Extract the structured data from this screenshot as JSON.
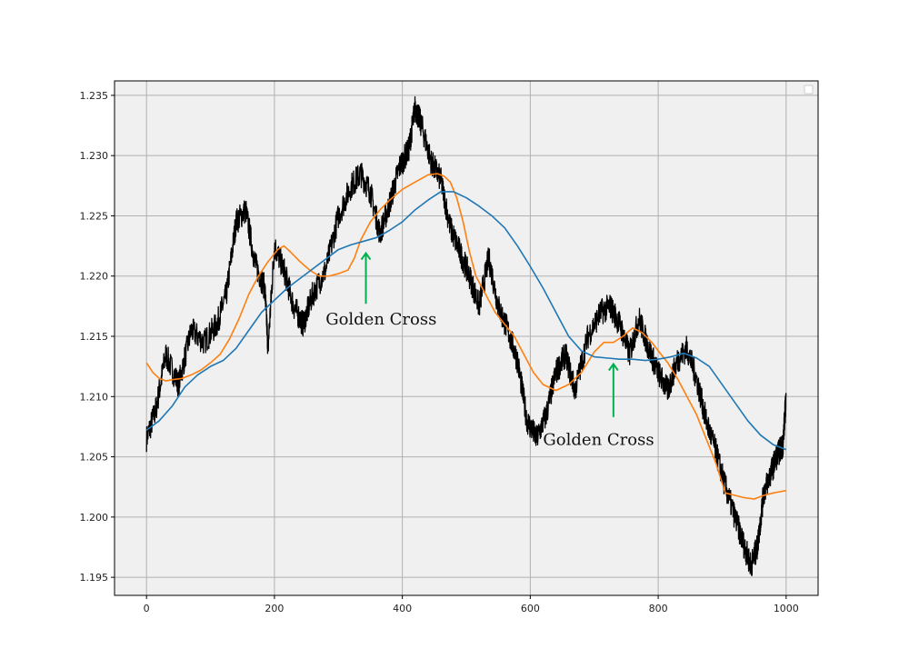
{
  "chart_data": {
    "type": "line",
    "title": "",
    "xlabel": "",
    "ylabel": "",
    "xlim": [
      -50,
      1050
    ],
    "ylim": [
      1.1935,
      1.2362
    ],
    "grid": true,
    "background": "#f0f0f0",
    "legend": {
      "placement": "upper right",
      "entries": []
    },
    "x_ticks": [
      0,
      200,
      400,
      600,
      800,
      1000
    ],
    "x_tick_labels": [
      "0",
      "200",
      "400",
      "600",
      "800",
      "1000"
    ],
    "y_ticks": [
      1.195,
      1.2,
      1.205,
      1.21,
      1.215,
      1.22,
      1.225,
      1.23,
      1.235
    ],
    "y_tick_labels": [
      "1.195",
      "1.200",
      "1.205",
      "1.210",
      "1.215",
      "1.220",
      "1.225",
      "1.230",
      "1.235"
    ],
    "series": [
      {
        "color": "#000000",
        "x": [
          0,
          15,
          30,
          50,
          70,
          90,
          110,
          125,
          140,
          155,
          170,
          185,
          190,
          200,
          215,
          230,
          245,
          260,
          280,
          300,
          320,
          335,
          350,
          365,
          380,
          395,
          410,
          420,
          430,
          445,
          460,
          475,
          490,
          505,
          520,
          535,
          550,
          565,
          580,
          595,
          610,
          625,
          640,
          655,
          670,
          690,
          710,
          725,
          740,
          755,
          770,
          785,
          800,
          815,
          830,
          845,
          860,
          875,
          890,
          905,
          920,
          935,
          945,
          955,
          965,
          975,
          985,
          995,
          1000
        ],
        "y": [
          1.2065,
          1.209,
          1.2135,
          1.211,
          1.2155,
          1.2145,
          1.216,
          1.2185,
          1.2245,
          1.2255,
          1.221,
          1.219,
          1.214,
          1.2225,
          1.2205,
          1.2175,
          1.216,
          1.2185,
          1.2205,
          1.225,
          1.2275,
          1.2285,
          1.227,
          1.2235,
          1.226,
          1.229,
          1.2305,
          1.234,
          1.2325,
          1.2295,
          1.228,
          1.224,
          1.222,
          1.22,
          1.2175,
          1.2215,
          1.2175,
          1.2155,
          1.213,
          1.208,
          1.2065,
          1.2085,
          1.212,
          1.2135,
          1.2105,
          1.215,
          1.217,
          1.2175,
          1.216,
          1.2135,
          1.2165,
          1.214,
          1.212,
          1.2105,
          1.213,
          1.214,
          1.2115,
          1.208,
          1.2055,
          1.2025,
          1.2,
          1.1975,
          1.196,
          1.1975,
          1.202,
          1.2035,
          1.205,
          1.206,
          1.21
        ]
      },
      {
        "color": "#ff7f0e",
        "x": [
          0,
          10,
          20,
          30,
          40,
          55,
          70,
          85,
          100,
          115,
          130,
          145,
          160,
          175,
          190,
          205,
          215,
          225,
          240,
          255,
          270,
          285,
          300,
          315,
          325,
          335,
          350,
          365,
          380,
          400,
          420,
          440,
          455,
          465,
          475,
          485,
          495,
          505,
          515,
          530,
          545,
          560,
          575,
          590,
          605,
          620,
          640,
          660,
          680,
          700,
          715,
          730,
          745,
          760,
          775,
          790,
          800,
          815,
          830,
          845,
          860,
          875,
          890,
          905,
          920,
          935,
          950,
          965,
          980,
          990,
          1000
        ],
        "y": [
          1.2128,
          1.212,
          1.2115,
          1.2113,
          1.2114,
          1.2115,
          1.2118,
          1.2122,
          1.2128,
          1.2135,
          1.2148,
          1.2165,
          1.2185,
          1.22,
          1.2212,
          1.2222,
          1.2225,
          1.222,
          1.2212,
          1.2205,
          1.22,
          1.22,
          1.2202,
          1.2205,
          1.2215,
          1.223,
          1.2245,
          1.2255,
          1.2263,
          1.2272,
          1.2278,
          1.2284,
          1.2285,
          1.2283,
          1.2278,
          1.2265,
          1.2245,
          1.222,
          1.22,
          1.2185,
          1.217,
          1.216,
          1.215,
          1.2135,
          1.212,
          1.211,
          1.2105,
          1.211,
          1.212,
          1.2137,
          1.2145,
          1.2145,
          1.215,
          1.2157,
          1.2153,
          1.2145,
          1.2138,
          1.2128,
          1.2115,
          1.21,
          1.2085,
          1.2065,
          1.2045,
          1.202,
          1.2018,
          1.2016,
          1.2015,
          1.2018,
          1.202,
          1.2021,
          1.2022
        ]
      },
      {
        "color": "#1f77b4",
        "x": [
          0,
          20,
          40,
          60,
          80,
          100,
          120,
          140,
          160,
          180,
          200,
          220,
          240,
          260,
          280,
          300,
          320,
          340,
          360,
          380,
          400,
          420,
          440,
          460,
          480,
          500,
          520,
          540,
          560,
          580,
          600,
          620,
          640,
          660,
          680,
          700,
          720,
          740,
          760,
          780,
          800,
          820,
          840,
          860,
          880,
          900,
          920,
          940,
          960,
          980,
          1000
        ],
        "y": [
          1.2072,
          1.208,
          1.2092,
          1.2108,
          1.2118,
          1.2125,
          1.213,
          1.214,
          1.2155,
          1.217,
          1.218,
          1.219,
          1.2198,
          1.2206,
          1.2214,
          1.2222,
          1.2226,
          1.2229,
          1.2232,
          1.2238,
          1.2245,
          1.2255,
          1.2263,
          1.227,
          1.227,
          1.2265,
          1.2258,
          1.225,
          1.224,
          1.2225,
          1.2208,
          1.219,
          1.217,
          1.215,
          1.2138,
          1.2133,
          1.2132,
          1.2131,
          1.2131,
          1.213,
          1.2131,
          1.2133,
          1.2136,
          1.2132,
          1.2125,
          1.211,
          1.2095,
          1.208,
          1.2068,
          1.206,
          1.2056
        ]
      }
    ],
    "annotations": [
      {
        "text": "Golden Cross",
        "arrow_x": 343,
        "arrow_y_from": 1.2177,
        "arrow_y_to": 1.2219,
        "text_x": 280,
        "text_y": 1.216,
        "arrow_color": "#00b050"
      },
      {
        "text": "Golden Cross",
        "arrow_x": 730,
        "arrow_y_from": 1.2083,
        "arrow_y_to": 1.2127,
        "text_x": 620,
        "text_y": 1.206,
        "arrow_color": "#00b050"
      }
    ]
  }
}
